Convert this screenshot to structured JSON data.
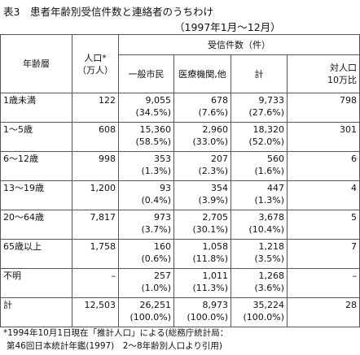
{
  "header": {
    "title": "表3　患者年齢別受信件数と連絡者のうちわけ",
    "subtitle": "（1997年1月～12月）"
  },
  "table": {
    "columns": {
      "age": "年齢層",
      "population": [
        "人口*",
        "（万人）"
      ],
      "calls": "受信件数（件）",
      "citizens": "一般市民",
      "medical": "医療機関,他",
      "total": "計",
      "ratio": [
        "対人口",
        "10万比"
      ]
    },
    "rows": [
      {
        "age": "1歳未満",
        "population": "122",
        "citizens": [
          "9,055",
          "(34.5%)"
        ],
        "medical": [
          "678",
          "(7.6%)"
        ],
        "total": [
          "9,733",
          "(27.6%)"
        ],
        "ratio": "798"
      },
      {
        "age": "1～5歳",
        "population": "608",
        "citizens": [
          "15,360",
          "(58.5%)"
        ],
        "medical": [
          "2,960",
          "(33.0%)"
        ],
        "total": [
          "18,320",
          "(52.0%)"
        ],
        "ratio": "301"
      },
      {
        "age": "6～12歳",
        "population": "998",
        "citizens": [
          "353",
          "(1.3%)"
        ],
        "medical": [
          "207",
          "(2.3%)"
        ],
        "total": [
          "560",
          "(1.6%)"
        ],
        "ratio": "6"
      },
      {
        "age": "13～19歳",
        "population": "1,200",
        "citizens": [
          "93",
          "(0.4%)"
        ],
        "medical": [
          "354",
          "(3.9%)"
        ],
        "total": [
          "447",
          "(1.3%)"
        ],
        "ratio": "4"
      },
      {
        "age": "20～64歳",
        "population": "7,817",
        "citizens": [
          "973",
          "(3.7%)"
        ],
        "medical": [
          "2,705",
          "(30.1%)"
        ],
        "total": [
          "3,678",
          "(10.4%)"
        ],
        "ratio": "5"
      },
      {
        "age": "65歳以上",
        "population": "1,758",
        "citizens": [
          "160",
          "(0.6%)"
        ],
        "medical": [
          "1,058",
          "(11.8%)"
        ],
        "total": [
          "1,218",
          "(3.5%)"
        ],
        "ratio": "7"
      },
      {
        "age": "不明",
        "population": "–",
        "citizens": [
          "257",
          "(1.0%)"
        ],
        "medical": [
          "1,011",
          "(11.3%)"
        ],
        "total": [
          "1,268",
          "(3.6%)"
        ],
        "ratio": "–"
      },
      {
        "age": "計",
        "population": "12,503",
        "citizens": [
          "26,251",
          "(100.0%)"
        ],
        "medical": [
          "8,973",
          "(100.0%)"
        ],
        "total": [
          "35,224",
          "(100.0%)"
        ],
        "ratio": "28"
      }
    ]
  },
  "footnote": [
    "*1994年10月1日現在「推計人口」による(総務庁統計局：",
    "第46回日本統計年鑑(1997)　2～8年齢別人口より引用)"
  ]
}
